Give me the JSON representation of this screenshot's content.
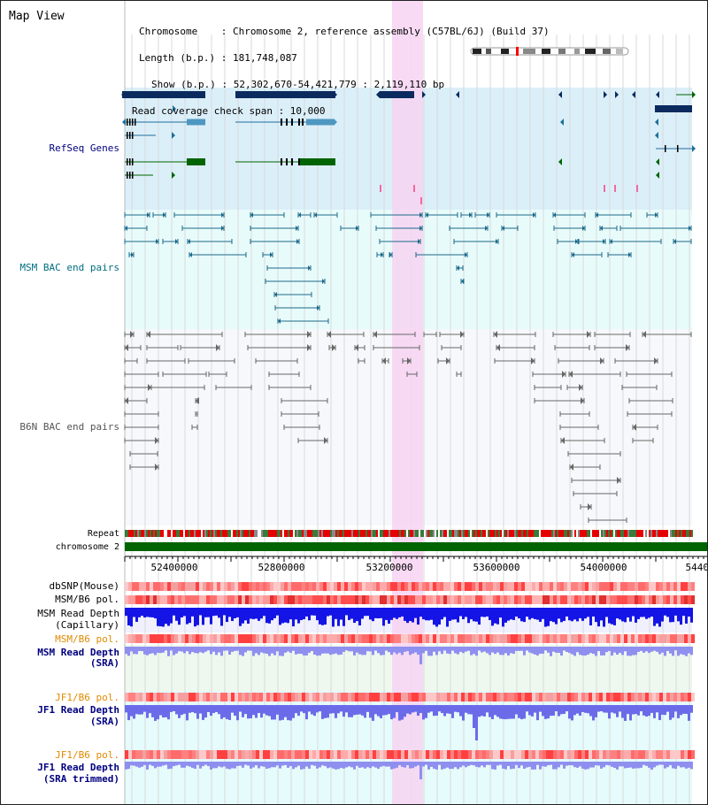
{
  "view_title": "Map View",
  "header": {
    "chromosome_line": "Chromosome    : Chromosome 2, reference assembly (C57BL/6J) (Build 37)",
    "length_line": "Length (b.p.) : 181,748,087",
    "show_line": "Show (b.p.) : 52,302,670-54,421,779 : 2,119,110 bp",
    "coverage_line": "Read coverage check span : 10,000"
  },
  "tracks": {
    "refseq": "RefSeq Genes",
    "msm_bac": "MSM BAC end pairs",
    "b6n_bac": "B6N BAC end pairs",
    "repeat": "Repeat",
    "chromosome": "chromosome 2",
    "dbsnp": "dbSNP(Mouse)",
    "msm_b6_pol_1": "MSM/B6 pol.",
    "msm_read_depth_cap_1": "MSM Read Depth",
    "msm_read_depth_cap_2": "(Capillary)",
    "msm_b6_pol_2": "MSM/B6 pol.",
    "msm_read_depth_sra_1": "MSM Read Depth",
    "msm_read_depth_sra_2": "(SRA)",
    "jf1_b6_pol_1": "JF1/B6 pol.",
    "jf1_read_depth_sra_1": "JF1 Read Depth",
    "jf1_read_depth_sra_2": "(SRA)",
    "jf1_b6_pol_2": "JF1/B6 pol.",
    "jf1_read_depth_trim_1": "JF1 Read Depth",
    "jf1_read_depth_trim_2": "(SRA trimmed)"
  },
  "axis": {
    "ticks": [
      "52400000",
      "52800000",
      "53200000",
      "53600000",
      "54000000",
      "5440"
    ]
  },
  "colors": {
    "refseq_bg": "#dbeff9",
    "bac_bg": "#e8fbfb",
    "highlight": "#f7d4f2",
    "gene_dark": "#0b2a5e",
    "gene_mid": "#1e6f9a",
    "gene_green": "#006400",
    "msm_bac": "#1b6a8a",
    "b6n_bac": "#666666",
    "read_depth_blue": "#1414e6",
    "label_blue": "#00007f",
    "label_teal": "#006d7f",
    "label_orange": "#e08a00"
  }
}
